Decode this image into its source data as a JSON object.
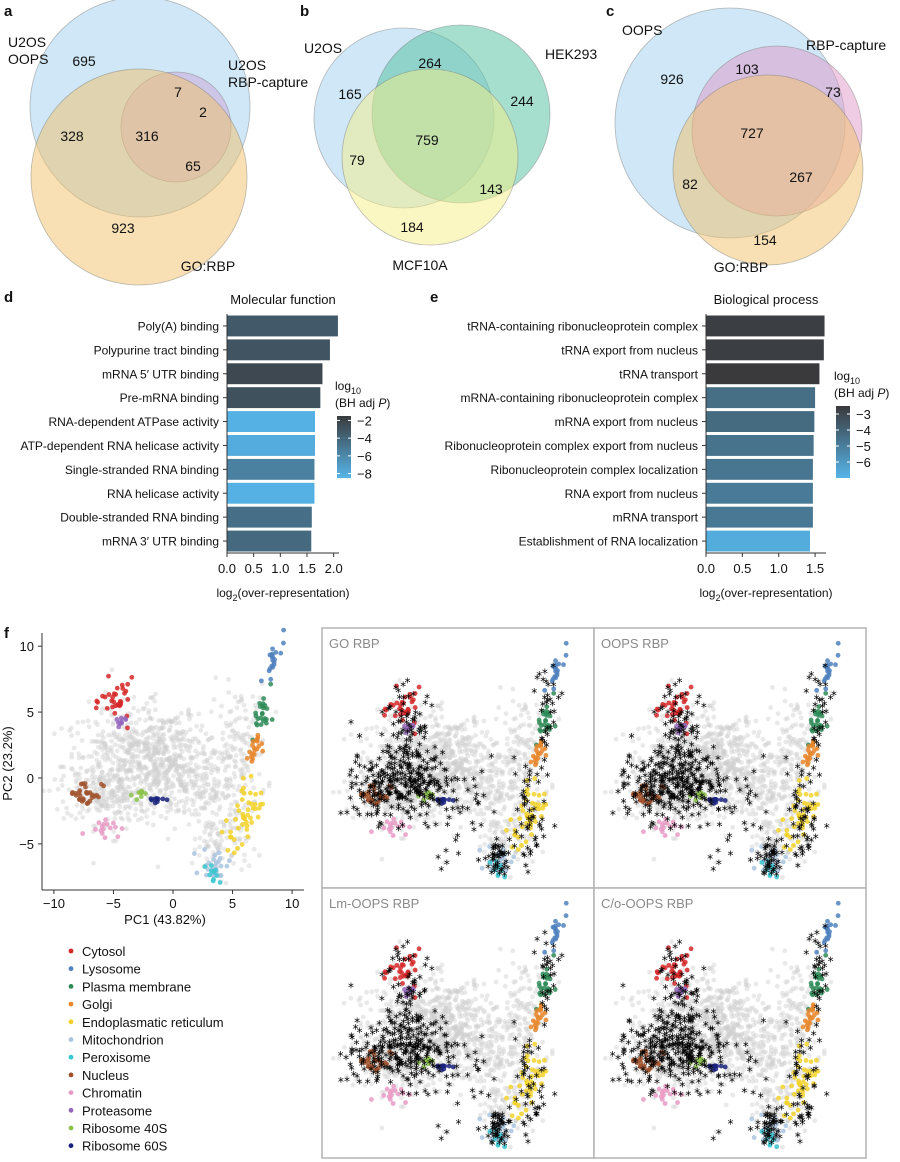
{
  "chart_data": [
    {
      "type": "venn",
      "panel": "a",
      "sets": [
        {
          "name": "U2OS\nOOPS",
          "label_lines": [
            "U2OS",
            "OOPS"
          ],
          "color": "#9fd0ee"
        },
        {
          "name": "U2OS RBP-capture",
          "label_lines": [
            "U2OS",
            "RBP-capture"
          ],
          "color": "#cba6d8"
        },
        {
          "name": "GO:RBP",
          "label_lines": [
            "GO:RBP"
          ],
          "color": "#f2c26a"
        }
      ],
      "regions": [
        {
          "key": "A",
          "value": "695"
        },
        {
          "key": "AB",
          "value": "7"
        },
        {
          "key": "B",
          "value": "2"
        },
        {
          "key": "AC",
          "value": "328"
        },
        {
          "key": "ABC",
          "value": "316"
        },
        {
          "key": "BC",
          "value": "65"
        },
        {
          "key": "C",
          "value": "923"
        }
      ]
    },
    {
      "type": "venn",
      "panel": "b",
      "sets": [
        {
          "name": "U2OS",
          "label_lines": [
            "U2OS"
          ],
          "color": "#9fd0ee"
        },
        {
          "name": "HEK293",
          "label_lines": [
            "HEK293"
          ],
          "color": "#4fbf9f"
        },
        {
          "name": "MCF10A",
          "label_lines": [
            "MCF10A"
          ],
          "color": "#f5f088"
        }
      ],
      "regions": [
        {
          "key": "A",
          "value": "165"
        },
        {
          "key": "AB",
          "value": "264"
        },
        {
          "key": "B",
          "value": "244"
        },
        {
          "key": "ABC",
          "value": "759"
        },
        {
          "key": "AC",
          "value": "79"
        },
        {
          "key": "BC",
          "value": "143"
        },
        {
          "key": "C",
          "value": "184"
        }
      ]
    },
    {
      "type": "venn",
      "panel": "c",
      "sets": [
        {
          "name": "OOPS",
          "label_lines": [
            "OOPS"
          ],
          "color": "#9fd0ee"
        },
        {
          "name": "RBP-capture",
          "label_lines": [
            "RBP-capture"
          ],
          "color": "#e09ac8"
        },
        {
          "name": "GO:RBP",
          "label_lines": [
            "GO:RBP"
          ],
          "color": "#f2c26a"
        }
      ],
      "regions": [
        {
          "key": "A",
          "value": "926"
        },
        {
          "key": "AB",
          "value": "103"
        },
        {
          "key": "B",
          "value": "73"
        },
        {
          "key": "ABC",
          "value": "727"
        },
        {
          "key": "AC",
          "value": "82"
        },
        {
          "key": "BC",
          "value": "267"
        },
        {
          "key": "C",
          "value": "154"
        }
      ]
    },
    {
      "type": "bar",
      "orientation": "horizontal",
      "panel": "d",
      "title": "Molecular function",
      "categories": [
        "Poly(A) binding",
        "Polypurine tract binding",
        "mRNA 5′ UTR binding",
        "Pre-mRNA binding",
        "RNA-dependent ATPase activity",
        "ATP-dependent RNA helicase activity",
        "Single-stranded RNA binding",
        "RNA helicase activity",
        "Double-stranded RNA binding",
        "mRNA 3′ UTR binding"
      ],
      "values": [
        2.08,
        1.93,
        1.79,
        1.75,
        1.65,
        1.65,
        1.64,
        1.64,
        1.59,
        1.58
      ],
      "color_values": [
        -3.3,
        -3.0,
        -2.3,
        -2.8,
        -8.3,
        -8.0,
        -5.6,
        -8.3,
        -4.5,
        -4.2
      ],
      "xlabel": "log2(over-representation)",
      "xticks": [
        "0.0",
        "0.5",
        "1.0",
        "1.5",
        "2.0"
      ],
      "xlim": [
        0,
        2.1
      ],
      "legend_title": [
        "log10",
        "(BH adj P)"
      ],
      "legend_ticks": [
        "−2",
        "−4",
        "−6",
        "−8"
      ],
      "legend_range": [
        -1.5,
        -8.5
      ]
    },
    {
      "type": "bar",
      "orientation": "horizontal",
      "panel": "e",
      "title": "Biological process",
      "categories": [
        "tRNA-containing ribonucleoprotein complex",
        "tRNA export from nucleus",
        "tRNA transport",
        "mRNA-containing ribonucleoprotein complex",
        "mRNA export from nucleus",
        "Ribonucleoprotein complex export from nucleus",
        "Ribonucleoprotein complex localization",
        "RNA export from nucleus",
        "mRNA transport",
        "Establishment of RNA localization"
      ],
      "values": [
        1.63,
        1.62,
        1.56,
        1.5,
        1.49,
        1.48,
        1.47,
        1.47,
        1.47,
        1.43
      ],
      "color_values": [
        -2.7,
        -2.7,
        -2.5,
        -4.4,
        -4.3,
        -4.6,
        -4.7,
        -4.9,
        -4.8,
        -6.7
      ],
      "xlabel": "log2(over-representation)",
      "xticks": [
        "0.0",
        "0.5",
        "1.0",
        "1.5"
      ],
      "xlim": [
        0,
        1.65
      ],
      "legend_title": [
        "log10",
        "(BH adj P)"
      ],
      "legend_ticks": [
        "−3",
        "−4",
        "−5",
        "−6"
      ],
      "legend_range": [
        -2.5,
        -7.0
      ]
    },
    {
      "type": "scatter",
      "panel": "f",
      "xlabel": "PC1 (43.82%)",
      "ylabel": "PC2 (23.2%)",
      "xlim": [
        -11,
        11
      ],
      "ylim": [
        -8.5,
        11
      ],
      "xticks": [
        "−10",
        "−5",
        "0",
        "5",
        "10"
      ],
      "yticks": [
        "10",
        "5",
        "0",
        "−5"
      ],
      "background": "unassigned proteins (light grey)",
      "clusters": [
        {
          "name": "Cytosol",
          "color": "#d62728",
          "center": [
            -4.6,
            5.8
          ],
          "spread": [
            0.7,
            0.8
          ],
          "n": 32
        },
        {
          "name": "Lysosome",
          "color": "#4f81bd",
          "center": [
            8.2,
            8.6
          ],
          "spread": [
            0.35,
            0.9
          ],
          "n": 20
        },
        {
          "name": "Plasma membrane",
          "color": "#2e8b57",
          "center": [
            7.4,
            4.8
          ],
          "spread": [
            0.35,
            0.9
          ],
          "n": 24
        },
        {
          "name": "Golgi",
          "color": "#e8862a",
          "center": [
            6.9,
            2.2
          ],
          "spread": [
            0.3,
            0.8
          ],
          "n": 20
        },
        {
          "name": "Endoplasmatic reticulum",
          "color": "#f2d22a",
          "center": [
            5.9,
            -3.0
          ],
          "spread": [
            0.6,
            1.2
          ],
          "n": 45
        },
        {
          "name": "Mitochondrion",
          "color": "#aac4df",
          "center": [
            3.6,
            -6.5
          ],
          "spread": [
            0.6,
            0.6
          ],
          "n": 28
        },
        {
          "name": "Peroxisome",
          "color": "#38c6cf",
          "center": [
            3.3,
            -7.2
          ],
          "spread": [
            0.35,
            0.4
          ],
          "n": 10
        },
        {
          "name": "Nucleus",
          "color": "#a0522d",
          "center": [
            -7.3,
            -1.2
          ],
          "spread": [
            0.7,
            0.5
          ],
          "n": 30
        },
        {
          "name": "Chromatin",
          "color": "#e89ac4",
          "center": [
            -5.8,
            -3.6
          ],
          "spread": [
            0.7,
            0.4
          ],
          "n": 16
        },
        {
          "name": "Proteasome",
          "color": "#9467bd",
          "center": [
            -4.6,
            3.9
          ],
          "spread": [
            0.3,
            0.5
          ],
          "n": 9
        },
        {
          "name": "Ribosome 40S",
          "color": "#8bc34a",
          "center": [
            -2.8,
            -1.3
          ],
          "spread": [
            0.3,
            0.2
          ],
          "n": 8
        },
        {
          "name": "Ribosome 60S",
          "color": "#1a237e",
          "center": [
            -1.5,
            -1.6
          ],
          "spread": [
            0.35,
            0.2
          ],
          "n": 10
        }
      ],
      "subpanels": [
        {
          "title": "GO RBP",
          "marker": "*"
        },
        {
          "title": "OOPS RBP",
          "marker": "*"
        },
        {
          "title": "Lm-OOPS RBP",
          "marker": "*"
        },
        {
          "title": "C/o-OOPS RBP",
          "marker": "*"
        }
      ]
    }
  ],
  "legend": {
    "items": [
      {
        "label": "Cytosol",
        "color": "#d62728"
      },
      {
        "label": "Lysosome",
        "color": "#4f81bd"
      },
      {
        "label": "Plasma membrane",
        "color": "#2e8b57"
      },
      {
        "label": "Golgi",
        "color": "#e8862a"
      },
      {
        "label": "Endoplasmatic reticulum",
        "color": "#f2d22a"
      },
      {
        "label": "Mitochondrion",
        "color": "#aac4df"
      },
      {
        "label": "Peroxisome",
        "color": "#38c6cf"
      },
      {
        "label": "Nucleus",
        "color": "#a0522d"
      },
      {
        "label": "Chromatin",
        "color": "#e89ac4"
      },
      {
        "label": "Proteasome",
        "color": "#9467bd"
      },
      {
        "label": "Ribosome 40S",
        "color": "#8bc34a"
      },
      {
        "label": "Ribosome 60S",
        "color": "#1a237e"
      }
    ]
  },
  "panel_labels": {
    "a": "a",
    "b": "b",
    "c": "c",
    "d": "d",
    "e": "e",
    "f": "f"
  }
}
